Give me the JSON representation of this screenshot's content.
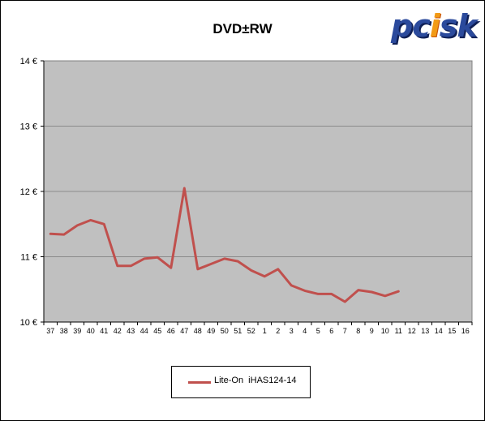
{
  "chart_data": {
    "type": "line",
    "title": "DVD±RW",
    "logo_text": "pcisk",
    "x": [
      "37",
      "38",
      "39",
      "40",
      "41",
      "42",
      "43",
      "44",
      "45",
      "46",
      "47",
      "48",
      "49",
      "50",
      "51",
      "52",
      "1",
      "2",
      "3",
      "4",
      "5",
      "6",
      "7",
      "8",
      "9",
      "10",
      "11",
      "12",
      "13",
      "14",
      "15",
      "16"
    ],
    "series": [
      {
        "name": "Lite-On  iHAS124-14",
        "color": "#c0504d",
        "values": [
          11.35,
          11.34,
          11.48,
          11.56,
          11.5,
          10.86,
          10.86,
          10.97,
          10.99,
          10.83,
          12.05,
          10.81,
          10.89,
          10.97,
          10.93,
          10.79,
          10.7,
          10.81,
          10.56,
          10.48,
          10.43,
          10.43,
          10.31,
          10.49,
          10.46,
          10.4,
          10.47,
          null,
          null,
          null,
          null,
          null
        ]
      }
    ],
    "y_ticks": [
      "10 €",
      "11 €",
      "12 €",
      "13 €",
      "14 €"
    ],
    "ylim": [
      10,
      14
    ],
    "grid": true,
    "legend_position": "bottom",
    "plot_background": "#c0c0c0"
  }
}
